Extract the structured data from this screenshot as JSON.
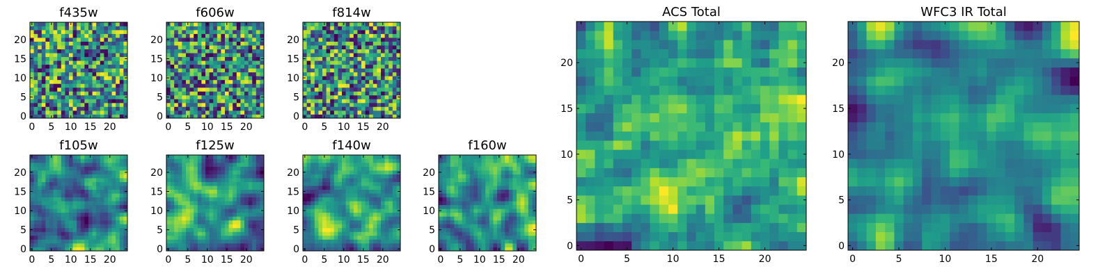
{
  "chart_data": [
    {
      "type": "heatmap",
      "title": "f435w",
      "xticks": [
        0,
        5,
        10,
        15,
        20
      ],
      "yticks": [
        0,
        5,
        10,
        15,
        20
      ],
      "xlim": [
        -0.5,
        24.5
      ],
      "ylim": [
        -0.5,
        24.5
      ],
      "colormap": "viridis",
      "value_range": [
        0,
        1
      ],
      "smoothing": 0,
      "seed": 11
    },
    {
      "type": "heatmap",
      "title": "f606w",
      "xticks": [
        0,
        5,
        10,
        15,
        20
      ],
      "yticks": [
        0,
        5,
        10,
        15,
        20
      ],
      "xlim": [
        -0.5,
        24.5
      ],
      "ylim": [
        -0.5,
        24.5
      ],
      "colormap": "viridis",
      "value_range": [
        0,
        1
      ],
      "smoothing": 0,
      "seed": 23
    },
    {
      "type": "heatmap",
      "title": "f814w",
      "xticks": [
        0,
        5,
        10,
        15,
        20
      ],
      "yticks": [
        0,
        5,
        10,
        15,
        20
      ],
      "xlim": [
        -0.5,
        24.5
      ],
      "ylim": [
        -0.5,
        24.5
      ],
      "colormap": "viridis",
      "value_range": [
        0,
        1
      ],
      "smoothing": 0,
      "seed": 37
    },
    {
      "type": "heatmap",
      "title": "f105w",
      "xticks": [
        0,
        5,
        10,
        15,
        20
      ],
      "yticks": [
        0,
        5,
        10,
        15,
        20
      ],
      "xlim": [
        -0.5,
        24.5
      ],
      "ylim": [
        -0.5,
        24.5
      ],
      "colormap": "viridis",
      "value_range": [
        0,
        1
      ],
      "smoothing": 2,
      "seed": 41
    },
    {
      "type": "heatmap",
      "title": "f125w",
      "xticks": [
        0,
        5,
        10,
        15,
        20
      ],
      "yticks": [
        0,
        5,
        10,
        15,
        20
      ],
      "xlim": [
        -0.5,
        24.5
      ],
      "ylim": [
        -0.5,
        24.5
      ],
      "colormap": "viridis",
      "value_range": [
        0,
        1
      ],
      "smoothing": 2,
      "seed": 53
    },
    {
      "type": "heatmap",
      "title": "f140w",
      "xticks": [
        0,
        5,
        10,
        15,
        20
      ],
      "yticks": [
        0,
        5,
        10,
        15,
        20
      ],
      "xlim": [
        -0.5,
        24.5
      ],
      "ylim": [
        -0.5,
        24.5
      ],
      "colormap": "viridis",
      "value_range": [
        0,
        1
      ],
      "smoothing": 2,
      "seed": 67
    },
    {
      "type": "heatmap",
      "title": "f160w",
      "xticks": [
        0,
        5,
        10,
        15,
        20
      ],
      "yticks": [
        0,
        5,
        10,
        15,
        20
      ],
      "xlim": [
        -0.5,
        24.5
      ],
      "ylim": [
        -0.5,
        24.5
      ],
      "colormap": "viridis",
      "value_range": [
        0,
        1
      ],
      "smoothing": 2,
      "seed": 79
    },
    {
      "type": "heatmap",
      "title": "ACS Total",
      "xticks": [
        0,
        5,
        10,
        15,
        20
      ],
      "yticks": [
        0,
        5,
        10,
        15,
        20
      ],
      "xlim": [
        -0.5,
        24.5
      ],
      "ylim": [
        -0.5,
        24.5
      ],
      "colormap": "viridis",
      "value_range": [
        0,
        1
      ],
      "smoothing": 1,
      "seed": 97
    },
    {
      "type": "heatmap",
      "title": "WFC3 IR Total",
      "xticks": [
        0,
        5,
        10,
        15,
        20
      ],
      "yticks": [
        0,
        5,
        10,
        15,
        20
      ],
      "xlim": [
        -0.5,
        24.5
      ],
      "ylim": [
        -0.5,
        24.5
      ],
      "colormap": "viridis",
      "value_range": [
        0,
        1
      ],
      "smoothing": 2,
      "seed": 113
    }
  ]
}
